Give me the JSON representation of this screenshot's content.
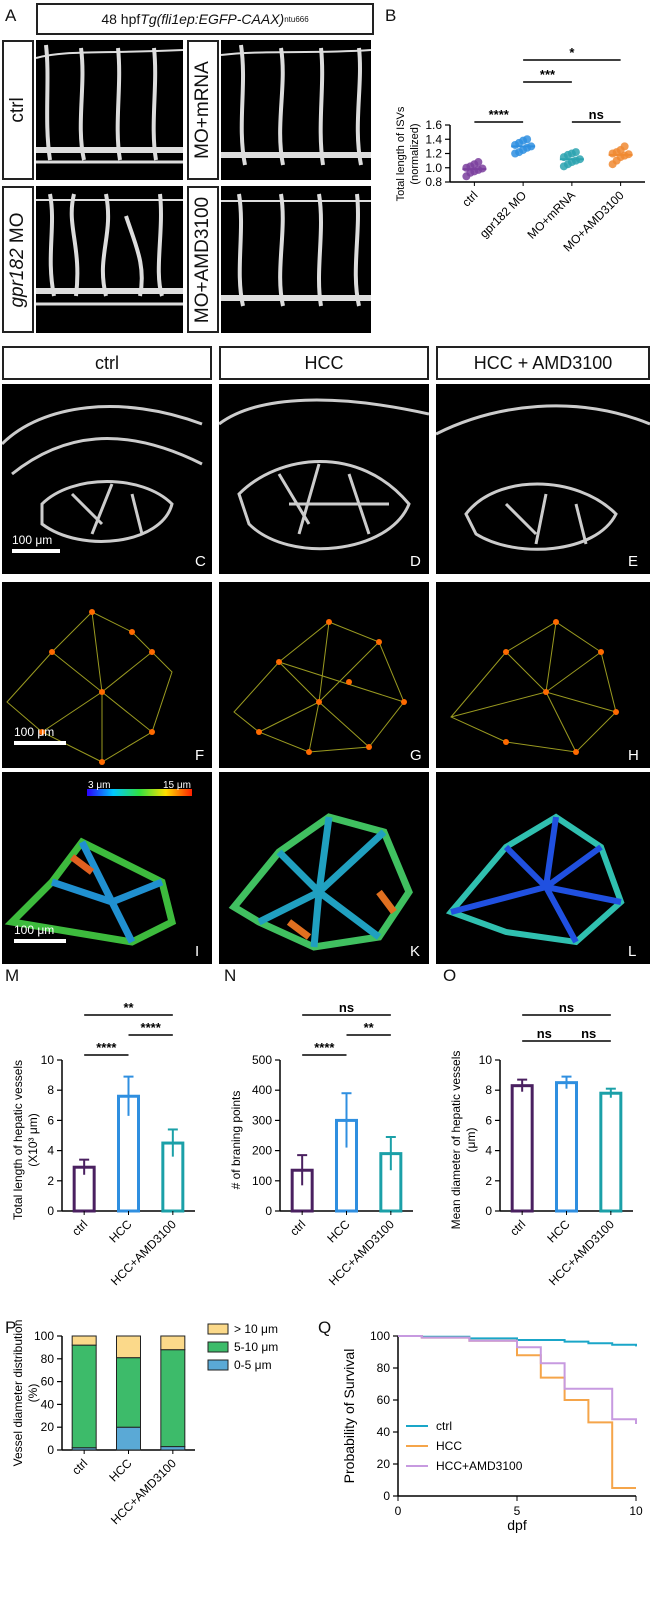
{
  "panelA": {
    "letter": "A",
    "header_prefix": "48 hpf ",
    "header_italic": "Tg(fli1ep:EGFP-CAAX)",
    "header_sup": "ntu666",
    "labels": {
      "ctrl": "ctrl",
      "mo_italic": "gpr182",
      "mo_rest": " MO",
      "mo_mrna": "MO+mRNA",
      "mo_amd": "MO+AMD3100"
    }
  },
  "panelCE": {
    "headers": [
      "ctrl",
      "HCC",
      "HCC + AMD3100"
    ],
    "letters_row1": [
      "C",
      "D",
      "E"
    ],
    "letters_row2": [
      "F",
      "G",
      "H"
    ],
    "letters_row3": [
      "I",
      "K",
      "L"
    ],
    "scale_text": "100 μm",
    "colorbar_min": "3 μm",
    "colorbar_max": "15 μm"
  },
  "letters": {
    "B": "B",
    "M": "M",
    "N": "N",
    "O": "O",
    "P": "P",
    "Q": "Q"
  },
  "chart_data": [
    {
      "panel": "B",
      "type": "scatter",
      "ylabel": "Total length of ISVs (normalized)",
      "categories": [
        "ctrl",
        "gpr182 MO",
        "MO+mRNA",
        "MO+AMD3100"
      ],
      "yticks": [
        "0.8",
        "1.0",
        "1.2",
        "1.4",
        "1.6"
      ],
      "ylim": [
        0.8,
        1.6
      ],
      "colors": [
        "#7b3f9e",
        "#2f8fe0",
        "#2ba3b0",
        "#f08a32"
      ],
      "points": [
        [
          0.88,
          0.93,
          0.95,
          0.97,
          0.99,
          1.0,
          1.02,
          1.05,
          1.08
        ],
        [
          1.2,
          1.22,
          1.25,
          1.28,
          1.3,
          1.32,
          1.35,
          1.38,
          1.4
        ],
        [
          1.02,
          1.05,
          1.08,
          1.1,
          1.12,
          1.15,
          1.18,
          1.2,
          1.22
        ],
        [
          1.05,
          1.1,
          1.15,
          1.17,
          1.19,
          1.2,
          1.22,
          1.25,
          1.3
        ]
      ],
      "means": [
        0.98,
        1.3,
        1.12,
        1.18
      ],
      "significance": [
        "****",
        "***",
        "*",
        "ns"
      ]
    },
    {
      "panel": "M",
      "type": "bar",
      "ylabel": "Total length of hepatic vessels",
      "ylabel2": "(X10³ μm)",
      "categories": [
        "ctrl",
        "HCC",
        "HCC+AMD3100"
      ],
      "values": [
        2.9,
        7.6,
        4.5
      ],
      "errors": [
        0.5,
        1.3,
        0.9
      ],
      "yticks": [
        "0",
        "2",
        "4",
        "6",
        "8",
        "10"
      ],
      "ylim": [
        0,
        10
      ],
      "colors": [
        "#4a2060",
        "#2f8fe0",
        "#1ba0a8"
      ],
      "significance": [
        "****",
        "****",
        "**"
      ]
    },
    {
      "panel": "N",
      "type": "bar",
      "ylabel": "# of braning points",
      "categories": [
        "ctrl",
        "HCC",
        "HCC+AMD3100"
      ],
      "values": [
        135,
        300,
        190
      ],
      "errors": [
        50,
        90,
        55
      ],
      "yticks": [
        "0",
        "100",
        "200",
        "300",
        "400",
        "500"
      ],
      "ylim": [
        0,
        500
      ],
      "colors": [
        "#4a2060",
        "#2f8fe0",
        "#1ba0a8"
      ],
      "significance": [
        "****",
        "**",
        "ns"
      ]
    },
    {
      "panel": "O",
      "type": "bar",
      "ylabel": "Mean diameter of hepatic vessels",
      "ylabel2": "(μm)",
      "categories": [
        "ctrl",
        "HCC",
        "HCC+AMD3100"
      ],
      "values": [
        8.3,
        8.5,
        7.8
      ],
      "errors": [
        0.4,
        0.4,
        0.3
      ],
      "yticks": [
        "0",
        "2",
        "4",
        "6",
        "8",
        "10"
      ],
      "ylim": [
        0,
        10
      ],
      "colors": [
        "#4a2060",
        "#2f8fe0",
        "#1ba0a8"
      ],
      "significance": [
        "ns",
        "ns",
        "ns"
      ]
    },
    {
      "panel": "P",
      "type": "bar",
      "stacked": true,
      "ylabel": "Vessel diameter distribution",
      "ylabel2": "(%)",
      "categories": [
        "ctrl",
        "HCC",
        "HCC+AMD3100"
      ],
      "series": [
        {
          "name": "0-5 μm",
          "color": "#5aa9d6",
          "values": [
            2,
            20,
            3
          ]
        },
        {
          "name": "5-10 μm",
          "color": "#3dbb6a",
          "values": [
            90,
            61,
            85
          ]
        },
        {
          "name": "> 10 μm",
          "color": "#fbd98a",
          "values": [
            8,
            19,
            12
          ]
        }
      ],
      "yticks": [
        "0",
        "20",
        "40",
        "60",
        "80",
        "100"
      ],
      "ylim": [
        0,
        100
      ]
    },
    {
      "panel": "Q",
      "type": "line",
      "ylabel": "Probability of Survival",
      "xlabel": "dpf",
      "xticks": [
        "0",
        "5",
        "10"
      ],
      "yticks": [
        "0",
        "20",
        "40",
        "60",
        "80",
        "100"
      ],
      "xlim": [
        0,
        10
      ],
      "ylim": [
        0,
        100
      ],
      "series": [
        {
          "name": "ctrl",
          "color": "#1aa6c8",
          "steps": [
            [
              0,
              100
            ],
            [
              1,
              99.5
            ],
            [
              3,
              98.5
            ],
            [
              5,
              97.5
            ],
            [
              7,
              96.5
            ],
            [
              8,
              95.5
            ],
            [
              9,
              94.5
            ],
            [
              10,
              93.5
            ]
          ]
        },
        {
          "name": "HCC",
          "color": "#f5a54a",
          "steps": [
            [
              0,
              100
            ],
            [
              1,
              99
            ],
            [
              3,
              97
            ],
            [
              5,
              88
            ],
            [
              6,
              74
            ],
            [
              7,
              60
            ],
            [
              8,
              46
            ],
            [
              9,
              5
            ],
            [
              10,
              5
            ]
          ]
        },
        {
          "name": "HCC+AMD3100",
          "color": "#c79ae0",
          "steps": [
            [
              0,
              100
            ],
            [
              1,
              99
            ],
            [
              3,
              97
            ],
            [
              5,
              93
            ],
            [
              6,
              83
            ],
            [
              7,
              67
            ],
            [
              8,
              67
            ],
            [
              9,
              48
            ],
            [
              10,
              45
            ]
          ]
        }
      ]
    }
  ]
}
